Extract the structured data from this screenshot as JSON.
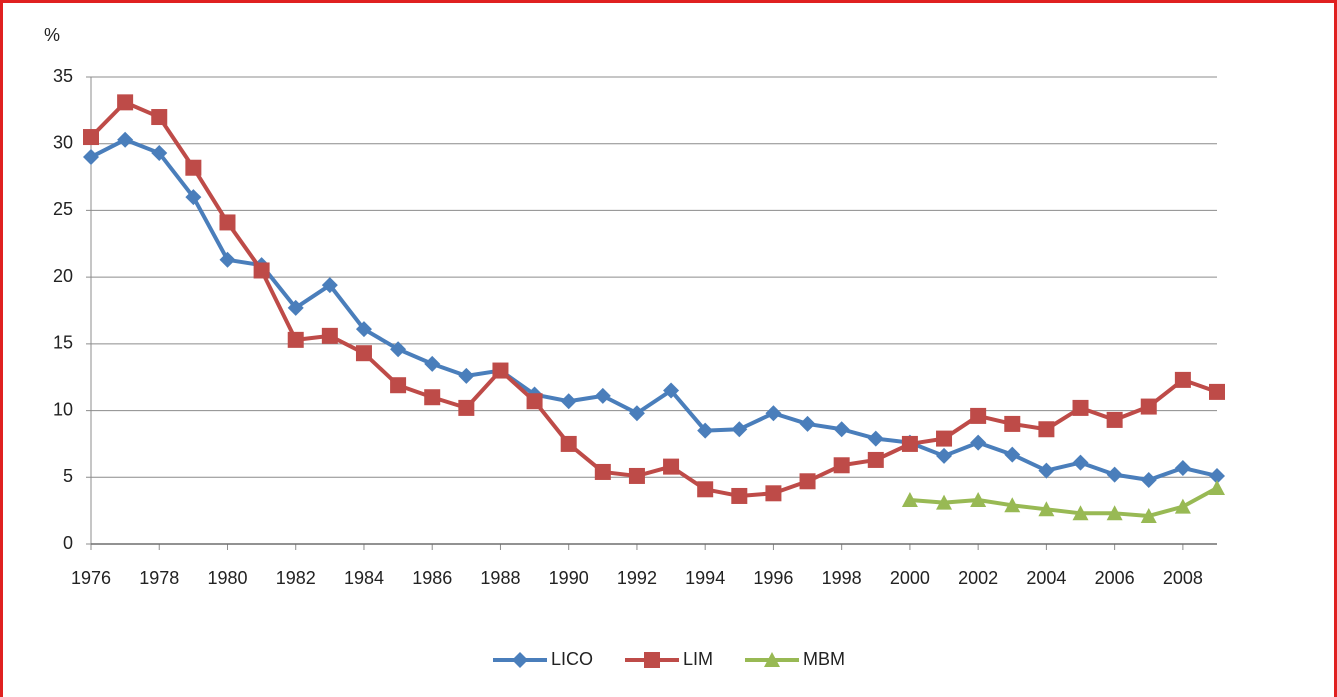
{
  "chart_data": {
    "type": "line",
    "y_label": "%",
    "x": [
      1976,
      1977,
      1978,
      1979,
      1980,
      1981,
      1982,
      1983,
      1984,
      1985,
      1986,
      1987,
      1988,
      1989,
      1990,
      1991,
      1992,
      1993,
      1994,
      1995,
      1996,
      1997,
      1998,
      1999,
      2000,
      2001,
      2002,
      2003,
      2004,
      2005,
      2006,
      2007,
      2008,
      2009
    ],
    "series": [
      {
        "name": "LICO",
        "color": "#4a7ebb",
        "marker": "diamond",
        "values": [
          29.0,
          30.3,
          29.3,
          26.0,
          21.3,
          20.9,
          17.7,
          19.4,
          16.1,
          14.6,
          13.5,
          12.6,
          13.0,
          11.2,
          10.7,
          11.1,
          9.8,
          11.5,
          8.5,
          8.6,
          9.8,
          9.0,
          8.6,
          7.9,
          7.6,
          6.6,
          7.6,
          6.7,
          5.5,
          6.1,
          5.2,
          4.8,
          5.7,
          5.1
        ]
      },
      {
        "name": "LIM",
        "color": "#be4b48",
        "marker": "square",
        "values": [
          30.5,
          33.1,
          32.0,
          28.2,
          24.1,
          20.5,
          15.3,
          15.6,
          14.3,
          11.9,
          11.0,
          10.2,
          13.0,
          10.7,
          7.5,
          5.4,
          5.1,
          5.8,
          4.1,
          3.6,
          3.8,
          4.7,
          5.9,
          6.3,
          7.5,
          7.9,
          9.6,
          9.0,
          8.6,
          10.2,
          9.3,
          10.3,
          12.3,
          11.4
        ]
      },
      {
        "name": "MBM",
        "color": "#98b954",
        "marker": "triangle",
        "values": [
          null,
          null,
          null,
          null,
          null,
          null,
          null,
          null,
          null,
          null,
          null,
          null,
          null,
          null,
          null,
          null,
          null,
          null,
          null,
          null,
          null,
          null,
          null,
          null,
          3.3,
          3.1,
          3.3,
          2.9,
          2.6,
          2.3,
          2.3,
          2.1,
          2.8,
          4.2
        ]
      }
    ],
    "xlim": [
      1976,
      2009
    ],
    "xticks": [
      1976,
      1978,
      1980,
      1982,
      1984,
      1986,
      1988,
      1990,
      1992,
      1994,
      1996,
      1998,
      2000,
      2002,
      2004,
      2006,
      2008
    ],
    "ylim": [
      0,
      35
    ],
    "yticks": [
      0,
      5,
      10,
      15,
      20,
      25,
      30,
      35
    ],
    "grid": true,
    "legend": "bottom"
  }
}
